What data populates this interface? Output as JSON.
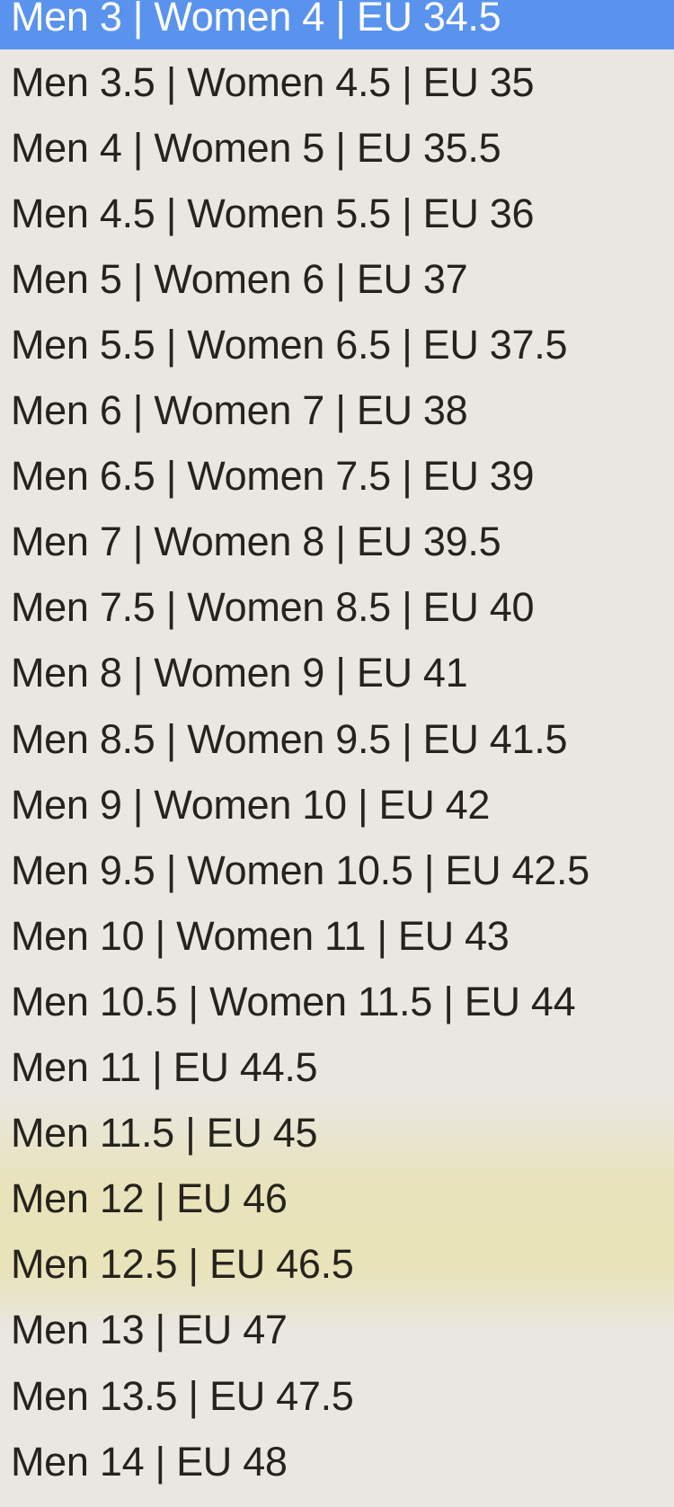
{
  "dropdown": {
    "kind": "select-option-list",
    "selected_index": 0,
    "colors": {
      "selection_background": "#5A93EE",
      "selection_text": "#FFFFFF",
      "list_background": "#EAE7E3",
      "option_text": "#26231E",
      "translucent_tint": "#E5DE84"
    },
    "options": [
      {
        "label": "Men 3 | Women 4 | EU 34.5",
        "selected": true
      },
      {
        "label": "Men 3.5 | Women 4.5 | EU 35",
        "selected": false
      },
      {
        "label": "Men 4 | Women 5 | EU 35.5",
        "selected": false
      },
      {
        "label": "Men 4.5 | Women 5.5 | EU 36",
        "selected": false
      },
      {
        "label": "Men 5 | Women 6 | EU 37",
        "selected": false
      },
      {
        "label": "Men 5.5 | Women 6.5 | EU 37.5",
        "selected": false
      },
      {
        "label": "Men 6 | Women 7 | EU 38",
        "selected": false
      },
      {
        "label": "Men 6.5 | Women 7.5 | EU 39",
        "selected": false
      },
      {
        "label": "Men 7 | Women 8 | EU 39.5",
        "selected": false
      },
      {
        "label": "Men 7.5 | Women 8.5 | EU 40",
        "selected": false
      },
      {
        "label": "Men 8 | Women 9 | EU 41",
        "selected": false
      },
      {
        "label": "Men 8.5 | Women 9.5 | EU 41.5",
        "selected": false
      },
      {
        "label": "Men 9 | Women 10 | EU 42",
        "selected": false
      },
      {
        "label": "Men 9.5 | Women 10.5 | EU 42.5",
        "selected": false
      },
      {
        "label": "Men 10 | Women 11 | EU 43",
        "selected": false
      },
      {
        "label": "Men 10.5 | Women 11.5 | EU 44",
        "selected": false
      },
      {
        "label": "Men 11 | EU 44.5",
        "selected": false
      },
      {
        "label": "Men 11.5 | EU 45",
        "selected": false
      },
      {
        "label": "Men 12 | EU 46",
        "selected": false
      },
      {
        "label": "Men 12.5 | EU 46.5",
        "selected": false
      },
      {
        "label": "Men 13 | EU 47",
        "selected": false
      },
      {
        "label": "Men 13.5 | EU 47.5",
        "selected": false
      },
      {
        "label": "Men 14 | EU 48",
        "selected": false
      }
    ]
  }
}
